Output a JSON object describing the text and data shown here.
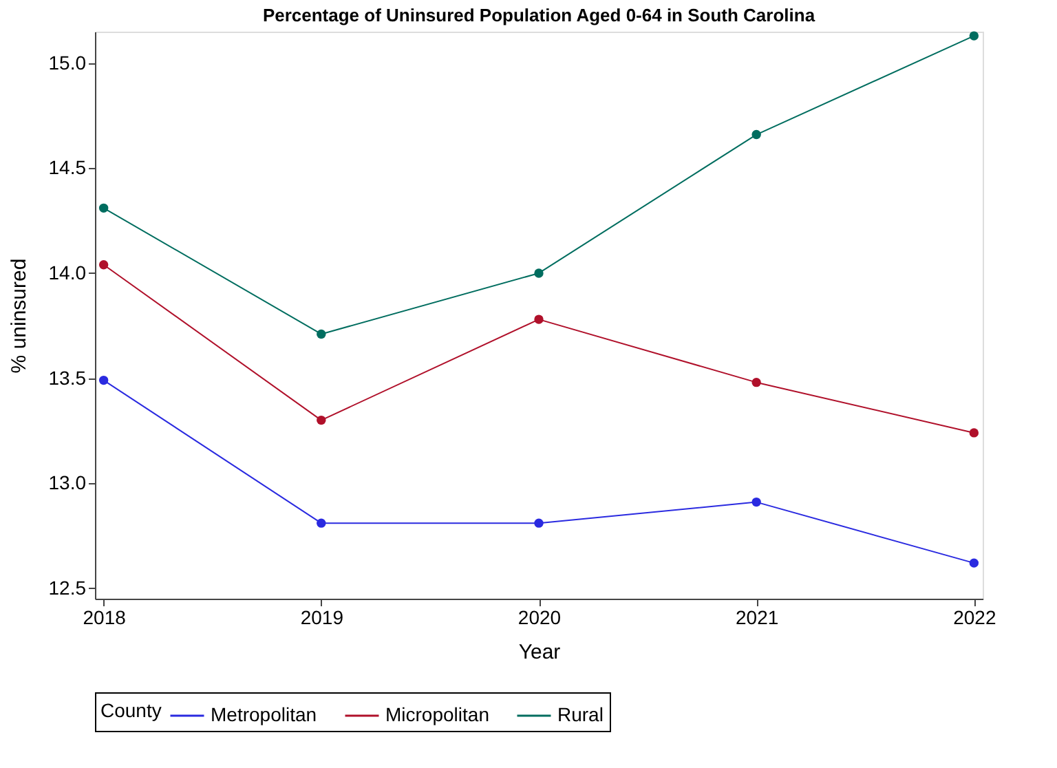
{
  "chart_data": {
    "type": "line",
    "title": "Percentage of Uninsured Population Aged 0-64 in South Carolina",
    "xlabel": "Year",
    "ylabel": "% uninsured",
    "legend_title": "County",
    "legend": "bottom",
    "grid": false,
    "marker": "circle",
    "line_style": "solid",
    "categories": [
      "2018",
      "2019",
      "2020",
      "2021",
      "2022"
    ],
    "ylim": [
      12.45,
      15.15
    ],
    "yticks": [
      12.5,
      {
        "value": 13,
        "label": "13.0"
      },
      13.5,
      {
        "value": 14,
        "label": "14.0"
      },
      14.5,
      {
        "value": 15,
        "label": "15.0"
      }
    ],
    "series": [
      {
        "name": "Metropolitan",
        "color": "#2a2ae0",
        "values": [
          13.49,
          12.81,
          12.81,
          12.91,
          12.62
        ]
      },
      {
        "name": "Micropolitan",
        "color": "#b0102a",
        "values": [
          14.04,
          13.3,
          13.78,
          13.48,
          13.24
        ]
      },
      {
        "name": "Rural",
        "color": "#006d5f",
        "values": [
          14.31,
          13.71,
          14.0,
          14.66,
          15.13
        ]
      }
    ]
  }
}
